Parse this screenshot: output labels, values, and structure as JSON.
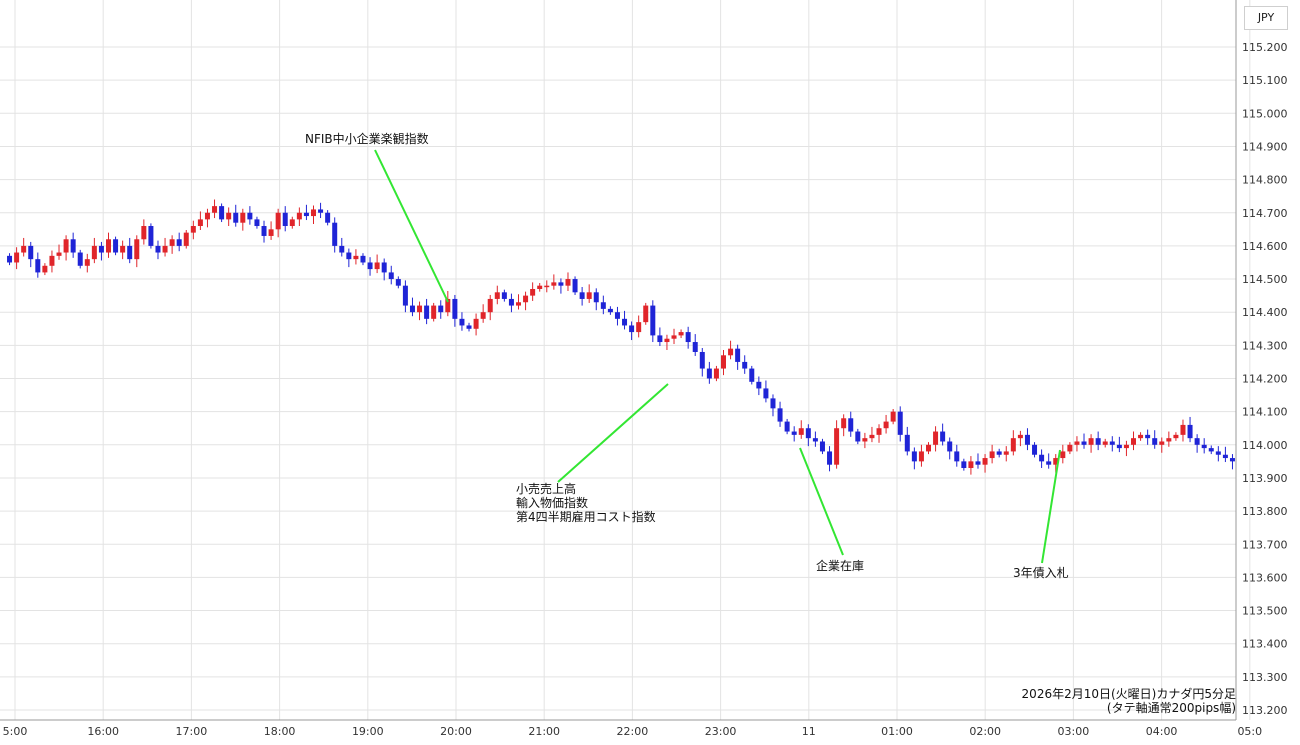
{
  "unit": "JPY",
  "footer": {
    "line1": "2026年2月10日(火曜日)カナダ円5分足",
    "line2": "(タテ軸通常200pips幅)"
  },
  "colors": {
    "up": "#e0252a",
    "down": "#1f24d6",
    "annotation_line": "#33e633",
    "grid": "#e3e3e3"
  },
  "chart_data": {
    "type": "candlestick",
    "title": "",
    "xlabel": "",
    "ylabel": "",
    "ylim": [
      113.2,
      115.2
    ],
    "y_ticks": [
      "115.200",
      "115.100",
      "115.000",
      "114.900",
      "114.800",
      "114.700",
      "114.600",
      "114.500",
      "114.400",
      "114.300",
      "114.200",
      "114.100",
      "114.000",
      "113.900",
      "113.800",
      "113.700",
      "113.600",
      "113.500",
      "113.400",
      "113.300",
      "113.200"
    ],
    "x_ticks": [
      "5:00",
      "16:00",
      "17:00",
      "18:00",
      "19:00",
      "20:00",
      "21:00",
      "22:00",
      "23:00",
      "11",
      "01:00",
      "02:00",
      "03:00",
      "04:00",
      "05:0"
    ],
    "grid": true,
    "candles_close": [
      114.55,
      114.58,
      114.6,
      114.56,
      114.52,
      114.54,
      114.57,
      114.58,
      114.62,
      114.58,
      114.54,
      114.56,
      114.6,
      114.58,
      114.62,
      114.58,
      114.6,
      114.56,
      114.62,
      114.66,
      114.6,
      114.58,
      114.6,
      114.62,
      114.6,
      114.64,
      114.66,
      114.68,
      114.7,
      114.72,
      114.68,
      114.7,
      114.67,
      114.7,
      114.68,
      114.66,
      114.63,
      114.65,
      114.7,
      114.66,
      114.68,
      114.7,
      114.69,
      114.71,
      114.7,
      114.67,
      114.6,
      114.58,
      114.56,
      114.57,
      114.55,
      114.53,
      114.55,
      114.52,
      114.5,
      114.48,
      114.42,
      114.4,
      114.42,
      114.38,
      114.42,
      114.4,
      114.44,
      114.38,
      114.36,
      114.35,
      114.38,
      114.4,
      114.44,
      114.46,
      114.44,
      114.42,
      114.43,
      114.45,
      114.47,
      114.48,
      114.48,
      114.49,
      114.48,
      114.5,
      114.46,
      114.44,
      114.46,
      114.43,
      114.41,
      114.4,
      114.38,
      114.36,
      114.34,
      114.37,
      114.42,
      114.33,
      114.31,
      114.32,
      114.33,
      114.34,
      114.31,
      114.28,
      114.23,
      114.2,
      114.23,
      114.27,
      114.29,
      114.25,
      114.23,
      114.19,
      114.17,
      114.14,
      114.11,
      114.07,
      114.04,
      114.03,
      114.05,
      114.02,
      114.01,
      113.98,
      113.94,
      114.05,
      114.08,
      114.04,
      114.01,
      114.02,
      114.03,
      114.05,
      114.07,
      114.1,
      114.03,
      113.98,
      113.95,
      113.98,
      114.0,
      114.04,
      114.01,
      113.98,
      113.95,
      113.93,
      113.95,
      113.94,
      113.96,
      113.98,
      113.97,
      113.98,
      114.02,
      114.03,
      114.0,
      113.97,
      113.95,
      113.94,
      113.96,
      113.98,
      114.0,
      114.01,
      114.0,
      114.02,
      114.0,
      114.01,
      114.0,
      113.99,
      114.0,
      114.02,
      114.03,
      114.02,
      114.0,
      114.01,
      114.02,
      114.03,
      114.06,
      114.02,
      114.0,
      113.99,
      113.98,
      113.97,
      113.96,
      113.95
    ]
  },
  "annotations": [
    {
      "lines": [
        "NFIB中小企業楽観指数"
      ]
    },
    {
      "lines": [
        "小売売上高",
        "輸入物価指数",
        "第4四半期雇用コスト指数"
      ]
    },
    {
      "lines": [
        "企業在庫"
      ]
    },
    {
      "lines": [
        "3年債入札"
      ]
    }
  ]
}
